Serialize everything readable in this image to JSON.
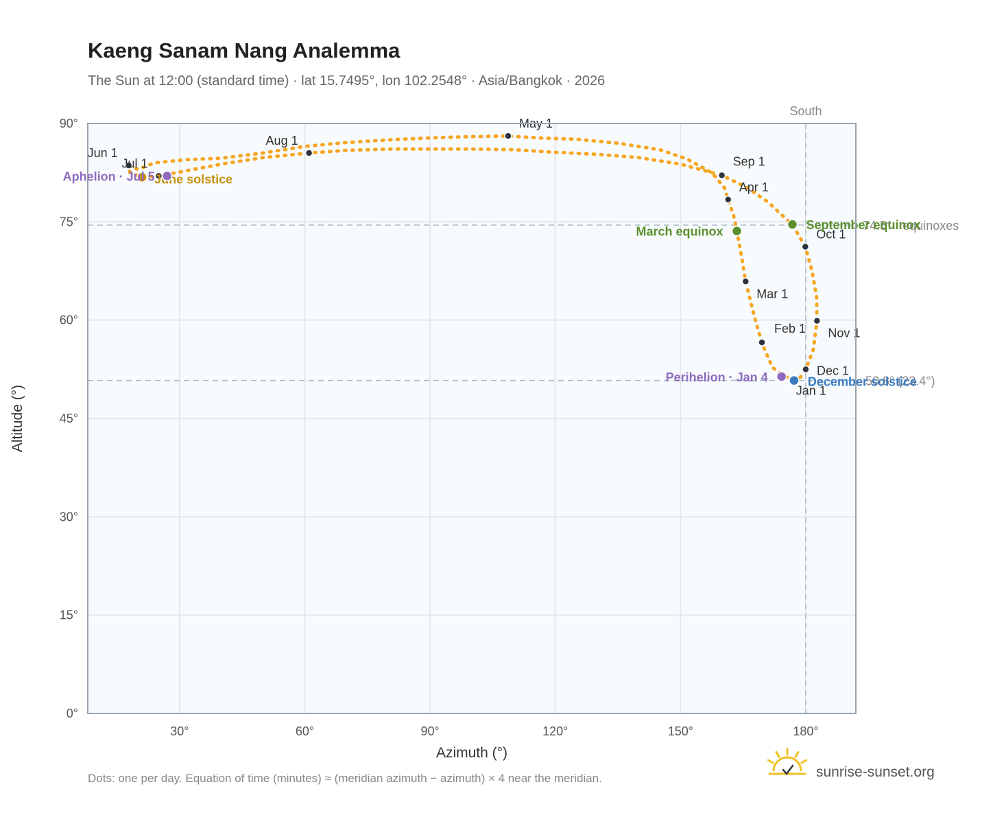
{
  "colors": {
    "path": "#f5a623",
    "month": "#2d3440",
    "equinox": "#5b8f2e",
    "solstice_june": "#c89212",
    "solstice_dec": "#3a7bbf",
    "apsis": "#8e6bbf",
    "grid": "#e3e8ee",
    "plot_bg": "#f8fbfd",
    "frame": "#9aa4b0",
    "ref_line": "#a9bcc4",
    "brand_sun": "#f0c020"
  },
  "chart_data": {
    "type": "scatter",
    "title": "Kaeng Sanam Nang Analemma",
    "subtitle": "The Sun at 12:00 (standard time) · lat 15.7495°, lon 102.2548° · Asia/Bangkok · 2026",
    "xlabel": "Azimuth (°)",
    "ylabel": "Altitude (°)",
    "xlim": [
      8,
      192
    ],
    "ylim": [
      0,
      90
    ],
    "xticks": [
      30,
      60,
      90,
      120,
      150,
      180
    ],
    "yticks": [
      0,
      15,
      30,
      45,
      60,
      75,
      90
    ],
    "xtick_labels": [
      "30°",
      "60°",
      "90°",
      "120°",
      "150°",
      "180°"
    ],
    "ytick_labels": [
      "0°",
      "15°",
      "30°",
      "45°",
      "60°",
      "75°",
      "90°"
    ],
    "grid": true,
    "path_points": [
      [
        177.2,
        50.8
      ],
      [
        174.5,
        51.6
      ],
      [
        172.0,
        52.8
      ],
      [
        169.5,
        56.5
      ],
      [
        167.5,
        61.0
      ],
      [
        165.6,
        65.9
      ],
      [
        164.6,
        69.8
      ],
      [
        163.5,
        73.6
      ],
      [
        162.7,
        76.0
      ],
      [
        161.4,
        78.4
      ],
      [
        160.5,
        80.2
      ],
      [
        157.5,
        82.5
      ],
      [
        151.5,
        84.6
      ],
      [
        145.0,
        86.0
      ],
      [
        135.0,
        87.0
      ],
      [
        125.0,
        87.6
      ],
      [
        115.8,
        87.8
      ],
      [
        108.7,
        88.1
      ],
      [
        100.0,
        88.0
      ],
      [
        90.0,
        87.8
      ],
      [
        80.0,
        87.5
      ],
      [
        70.0,
        87.1
      ],
      [
        60.0,
        86.5
      ],
      [
        50.0,
        85.5
      ],
      [
        40.0,
        84.7
      ],
      [
        32.0,
        84.5
      ],
      [
        24.0,
        84.0
      ],
      [
        20.0,
        83.0
      ],
      [
        17.8,
        83.6
      ],
      [
        18.1,
        82.5
      ],
      [
        21.0,
        81.8
      ],
      [
        25.0,
        82.0
      ],
      [
        30.0,
        82.6
      ],
      [
        40.0,
        83.8
      ],
      [
        50.0,
        84.8
      ],
      [
        61.0,
        85.5
      ],
      [
        70.0,
        85.9
      ],
      [
        80.0,
        86.1
      ],
      [
        90.0,
        86.1
      ],
      [
        100.0,
        86.1
      ],
      [
        110.0,
        86.0
      ],
      [
        120.0,
        85.6
      ],
      [
        130.0,
        85.3
      ],
      [
        140.0,
        84.8
      ],
      [
        150.0,
        83.8
      ],
      [
        159.9,
        82.1
      ],
      [
        166.0,
        80.2
      ],
      [
        171.0,
        78.0
      ],
      [
        174.0,
        76.2
      ],
      [
        176.8,
        74.6
      ],
      [
        179.9,
        71.2
      ],
      [
        181.5,
        67.5
      ],
      [
        182.6,
        63.5
      ],
      [
        182.7,
        59.9
      ],
      [
        181.8,
        55.5
      ],
      [
        180.0,
        52.5
      ],
      [
        178.6,
        51.2
      ],
      [
        177.2,
        50.8
      ]
    ],
    "month_markers": [
      {
        "label": "Jan 1",
        "az": 177.0,
        "alt": 50.9
      },
      {
        "label": "Feb 1",
        "az": 169.5,
        "alt": 56.6
      },
      {
        "label": "Mar 1",
        "az": 165.6,
        "alt": 65.9
      },
      {
        "label": "Apr 1",
        "az": 161.4,
        "alt": 78.4
      },
      {
        "label": "May 1",
        "az": 108.7,
        "alt": 88.1
      },
      {
        "label": "Jun 1",
        "az": 17.8,
        "alt": 83.6
      },
      {
        "label": "Jul 1",
        "az": 25.0,
        "alt": 82.0
      },
      {
        "label": "Aug 1",
        "az": 61.0,
        "alt": 85.5
      },
      {
        "label": "Sep 1",
        "az": 159.9,
        "alt": 82.1
      },
      {
        "label": "Oct 1",
        "az": 179.9,
        "alt": 71.2
      },
      {
        "label": "Nov 1",
        "az": 182.7,
        "alt": 59.9
      },
      {
        "label": "Dec 1",
        "az": 180.0,
        "alt": 52.5
      }
    ],
    "events": [
      {
        "label": "March equinox",
        "az": 163.5,
        "alt": 73.6,
        "kind": "equinox"
      },
      {
        "label": "September equinox",
        "az": 176.8,
        "alt": 74.6,
        "kind": "equinox"
      },
      {
        "label": "June solstice",
        "az": 21.0,
        "alt": 81.8,
        "kind": "solstice_june"
      },
      {
        "label": "December solstice",
        "az": 177.2,
        "alt": 50.8,
        "kind": "solstice_dec"
      },
      {
        "label": "Aphelion · Jul 5",
        "az": 27.0,
        "alt": 82.0,
        "kind": "apsis"
      },
      {
        "label": "Perihelion · Jan 4",
        "az": 174.2,
        "alt": 51.4,
        "kind": "apsis"
      }
    ],
    "reference_lines": [
      {
        "label": "74.5° · equinoxes",
        "alt": 74.5
      },
      {
        "label": "50.8° (23.4°)",
        "alt": 50.8
      }
    ],
    "meridian": {
      "label": "South",
      "az": 180
    }
  },
  "footer": {
    "note": "Dots: one per day. Equation of time (minutes) ≈ (meridian azimuth − azimuth) × 4 near the meridian.",
    "brand": "sunrise-sunset.org"
  }
}
